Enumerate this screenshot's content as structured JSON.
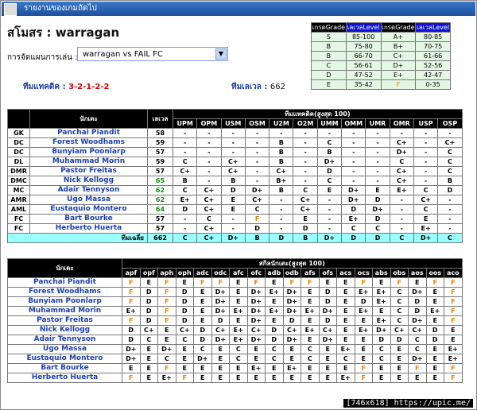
{
  "title_bar": "รายงานของเกมถัดไป",
  "club": {
    "label": "สโมสร :",
    "name": "warragan"
  },
  "lineup": {
    "label": "การจัดแผนการเล่น :",
    "selected": "warragan vs FAIL FC"
  },
  "tactic": {
    "label": "ทีมแทคติค :",
    "value": "3-2-1-2-2"
  },
  "team_level": {
    "label": "ทีมเลเวล :",
    "value": 662
  },
  "grade_table": {
    "headers": [
      "เกรดGrade",
      "เลเวลLevel",
      "เกรดGrade",
      "เลเวลLevel"
    ],
    "rows": [
      [
        "S",
        "85-100",
        "A+",
        "80-85"
      ],
      [
        "B",
        "75-80",
        "B+",
        "70-75"
      ],
      [
        "B",
        "66-70",
        "C+",
        "61-66"
      ],
      [
        "C",
        "56-61",
        "D+",
        "52-56"
      ],
      [
        "D",
        "47-52",
        "E+",
        "42-47"
      ],
      [
        "E",
        "35-42",
        "F",
        "0-35"
      ]
    ]
  },
  "tactic_table": {
    "player_header": "นักเตะ",
    "level_header": "เลเวล",
    "group_header": "ทีมแทคติค(สูงสุด 100)",
    "columns": [
      "UPM",
      "OPM",
      "USM",
      "OSM",
      "U2M",
      "O2M",
      "UMM",
      "OMM",
      "UMR",
      "OMR",
      "USP",
      "OSP"
    ],
    "rows": [
      {
        "pos": "GK",
        "name": "Panchai Piandit",
        "level": 58,
        "grades": [
          "-",
          "-",
          "-",
          "-",
          "-",
          "-",
          "-",
          "-",
          "-",
          "-",
          "-",
          "-"
        ]
      },
      {
        "pos": "DC",
        "name": "Forest Woodhams",
        "level": 59,
        "grades": [
          "-",
          "-",
          "-",
          "-",
          "B",
          "-",
          "C",
          "-",
          "-",
          "C+",
          "-",
          "C+"
        ]
      },
      {
        "pos": "DC",
        "name": "Bunyiam Poonlarp",
        "level": 57,
        "grades": [
          "-",
          "-",
          "-",
          "-",
          "B",
          "-",
          "B",
          "-",
          "-",
          "D+",
          "-",
          "C"
        ]
      },
      {
        "pos": "DL",
        "name": "Muhammad Morin",
        "level": 59,
        "grades": [
          "C",
          "-",
          "C+",
          "-",
          "B",
          "-",
          "D+",
          "-",
          "-",
          "C",
          "-",
          "C"
        ]
      },
      {
        "pos": "DMR",
        "name": "Pastor Freitas",
        "level": 57,
        "grades": [
          "C+",
          "-",
          "C+",
          "-",
          "C+",
          "-",
          "D",
          "-",
          "-",
          "C+",
          "-",
          "C"
        ]
      },
      {
        "pos": "DMC",
        "name": "Nick Kellogg",
        "level": 65,
        "grades": [
          "B",
          "-",
          "B",
          "-",
          "B+",
          "-",
          "C",
          "-",
          "-",
          "C+",
          "-",
          "B"
        ]
      },
      {
        "pos": "MC",
        "name": "Adair Tennyson",
        "level": 62,
        "grades": [
          "C",
          "C+",
          "D",
          "D+",
          "B",
          "C",
          "E",
          "D+",
          "E",
          "E+",
          "C",
          "D"
        ]
      },
      {
        "pos": "AMR",
        "name": "Ugo Massa",
        "level": 62,
        "grades": [
          "E+",
          "C+",
          "E",
          "C+",
          "-",
          "C+",
          "-",
          "D+",
          "D",
          "-",
          "C+",
          "-"
        ]
      },
      {
        "pos": "AML",
        "name": "Eustaquio Montero",
        "level": 64,
        "grades": [
          "D",
          "C+",
          "E",
          "C",
          "-",
          "C+",
          "-",
          "D",
          "D+",
          "-",
          "C",
          "-"
        ]
      },
      {
        "pos": "FC",
        "name": "Bart Bourke",
        "level": 57,
        "grades": [
          "-",
          "C",
          "-",
          "F",
          "-",
          "E",
          "-",
          "E+",
          "D",
          "-",
          "E",
          "-"
        ]
      },
      {
        "pos": "FC",
        "name": "Herberto Huerta",
        "level": 57,
        "grades": [
          "-",
          "C+",
          "-",
          "D",
          "-",
          "D",
          "-",
          "C",
          "C",
          "-",
          "E+",
          "-"
        ]
      }
    ],
    "total": {
      "label": "ทีมเฉลี่ย",
      "level": 662,
      "grades": [
        "C",
        "C+",
        "D+",
        "B",
        "D",
        "B",
        "D+",
        "D",
        "D",
        "C",
        "D+",
        "C"
      ]
    }
  },
  "skill_table": {
    "player_header": "นักเตะ",
    "group_header": "สกิลนักเตะ(สูงสุด 100)",
    "columns": [
      "apf",
      "opf",
      "aph",
      "oph",
      "adc",
      "odc",
      "afc",
      "ofc",
      "adb",
      "odb",
      "afs",
      "ofs",
      "acs",
      "ocs",
      "abs",
      "obs",
      "aos",
      "oos",
      "aco"
    ],
    "rows": [
      {
        "name": "Panchai Piandit",
        "grades": [
          "F",
          "E",
          "F",
          "E",
          "F",
          "F",
          "E",
          "F",
          "E",
          "F",
          "F",
          "E",
          "E",
          "F",
          "E",
          "F",
          "E",
          "F",
          "F"
        ]
      },
      {
        "name": "Forest Woodhams",
        "grades": [
          "F",
          "D",
          "F",
          "D",
          "E",
          "D+",
          "E",
          "D+",
          "E+",
          "D+",
          "E",
          "D",
          "E",
          "E+",
          "E+",
          "C",
          "D+",
          "E",
          "F"
        ]
      },
      {
        "name": "Bunyiam Poonlarp",
        "grades": [
          "F",
          "D",
          "F",
          "D",
          "E",
          "D+",
          "E",
          "D+",
          "E",
          "D+",
          "E",
          "D",
          "E",
          "D",
          "E+",
          "C",
          "D",
          "E",
          "F"
        ]
      },
      {
        "name": "Muhammad Morin",
        "grades": [
          "E+",
          "D",
          "F",
          "D",
          "E",
          "D+",
          "E+",
          "D+",
          "E+",
          "D+",
          "E+",
          "D+",
          "E",
          "E+",
          "E",
          "C",
          "D",
          "E+",
          "F"
        ]
      },
      {
        "name": "Pastor Freitas",
        "grades": [
          "F",
          "D",
          "F",
          "D",
          "E",
          "D",
          "E",
          "D+",
          "E",
          "D",
          "E",
          "D",
          "E",
          "E",
          "E+",
          "C",
          "D+",
          "E",
          "F"
        ]
      },
      {
        "name": "Nick Kellogg",
        "grades": [
          "D",
          "C+",
          "E",
          "C+",
          "D",
          "C+",
          "E+",
          "C+",
          "D",
          "C+",
          "E+",
          "C+",
          "E",
          "E+",
          "D+",
          "C+",
          "C+",
          "D",
          "E"
        ]
      },
      {
        "name": "Adair Tennyson",
        "grades": [
          "D",
          "C",
          "E",
          "C",
          "D",
          "D+",
          "E+",
          "D+",
          "D",
          "D+",
          "E",
          "D+",
          "E",
          "E",
          "D",
          "D",
          "C",
          "D",
          "E"
        ]
      },
      {
        "name": "Ugo Massa",
        "grades": [
          "D+",
          "E",
          "D+",
          "E",
          "C",
          "E",
          "C",
          "E",
          "C",
          "E",
          "C",
          "E",
          "E+",
          "E",
          "C",
          "E",
          "C",
          "E",
          "E+"
        ]
      },
      {
        "name": "Eustaquio Montero",
        "grades": [
          "D+",
          "E",
          "C",
          "E",
          "D+",
          "E",
          "C",
          "E",
          "C",
          "E",
          "C",
          "E",
          "C",
          "E",
          "C",
          "E",
          "D+",
          "E",
          "E+"
        ]
      },
      {
        "name": "Bart Bourke",
        "grades": [
          "E",
          "E",
          "F",
          "E",
          "E",
          "E",
          "E",
          "E+",
          "E",
          "E+",
          "E",
          "E",
          "E",
          "F",
          "E",
          "E",
          "F",
          "E",
          "F"
        ]
      },
      {
        "name": "Herberto Huerta",
        "grades": [
          "F",
          "E",
          "E+",
          "F",
          "E",
          "E",
          "E",
          "E",
          "E",
          "E",
          "E",
          "E",
          "E+",
          "F",
          "E",
          "E",
          "E",
          "E",
          "F"
        ]
      }
    ]
  },
  "watermark": "[746x618] https://upic.me/"
}
